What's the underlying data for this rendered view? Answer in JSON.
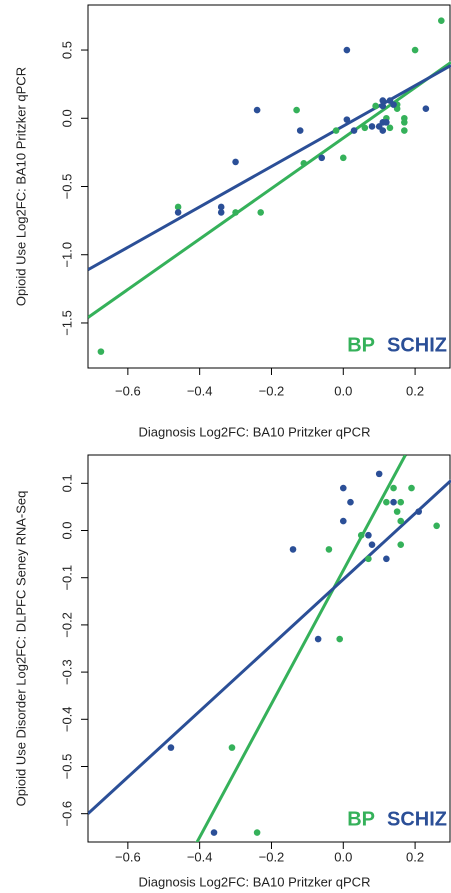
{
  "chart_data": [
    {
      "type": "scatter",
      "xlabel": "Diagnosis Log2FC: BA10 Pritzker qPCR",
      "ylabel": "Opioid Use Log2FC: BA10 Pritzker qPCR",
      "xlim": [
        -0.711,
        0.3
      ],
      "ylim": [
        -1.83,
        0.83
      ],
      "xticks": [
        {
          "value": -0.6,
          "label": "−0.6"
        },
        {
          "value": -0.4,
          "label": "−0.4"
        },
        {
          "value": -0.2,
          "label": "−0.2"
        },
        {
          "value": 0,
          "label": "0.0"
        },
        0.2
      ],
      "yticks": [
        {
          "value": -1.5,
          "label": "−1.5"
        },
        {
          "value": -1,
          "label": "−1.0"
        },
        {
          "value": -0.5,
          "label": "−0.5"
        },
        {
          "value": 0,
          "label": "0.0"
        },
        0.5
      ],
      "series": [
        {
          "name": "BP",
          "color": "#35b15a",
          "x": [
            0.273,
            0.2,
            -0.675,
            -0.46,
            -0.3,
            -0.23,
            -0.13,
            -0.11,
            -0.02,
            0.0,
            0.09,
            0.12,
            0.13,
            0.15,
            0.15,
            0.17,
            0.17,
            0.17,
            0.06
          ],
          "values": [
            0.715,
            0.5,
            -1.71,
            -0.65,
            -0.69,
            -0.69,
            0.06,
            -0.33,
            -0.09,
            -0.29,
            0.09,
            0.0,
            -0.07,
            0.1,
            0.07,
            -0.03,
            -0.09,
            0.0,
            -0.07
          ],
          "fit": {
            "x": [
              -0.711,
              0.3
            ],
            "y": [
              -1.46,
              0.41
            ]
          }
        },
        {
          "name": "SCHIZ",
          "color": "#2b4f97",
          "x": [
            0.01,
            -0.24,
            -0.46,
            -0.34,
            -0.34,
            -0.3,
            -0.12,
            -0.06,
            0.01,
            0.03,
            0.08,
            0.1,
            0.11,
            0.11,
            0.11,
            0.12,
            0.11,
            0.14,
            0.23,
            0.13
          ],
          "values": [
            0.5,
            0.06,
            -0.69,
            -0.65,
            -0.69,
            -0.32,
            -0.09,
            -0.29,
            -0.01,
            -0.09,
            -0.06,
            -0.06,
            0.09,
            0.13,
            -0.03,
            -0.03,
            -0.09,
            0.1,
            0.07,
            0.13
          ],
          "fit": {
            "x": [
              -0.711,
              0.3
            ],
            "y": [
              -1.11,
              0.387
            ]
          }
        }
      ]
    },
    {
      "type": "scatter",
      "xlabel": "Diagnosis Log2FC: BA10 Pritzker qPCR",
      "ylabel": "Opioid Use Disorder Log2FC: DLPFC Seney RNA-Seq",
      "xlim": [
        -0.711,
        0.3
      ],
      "ylim": [
        -0.66,
        0.16
      ],
      "xticks": [
        {
          "value": -0.6,
          "label": "−0.6"
        },
        {
          "value": -0.4,
          "label": "−0.4"
        },
        {
          "value": -0.2,
          "label": "−0.2"
        },
        {
          "value": 0,
          "label": "0.0"
        },
        0.2
      ],
      "yticks": [
        {
          "value": -0.6,
          "label": "−0.6"
        },
        {
          "value": -0.5,
          "label": "−0.5"
        },
        {
          "value": -0.4,
          "label": "−0.4"
        },
        {
          "value": -0.3,
          "label": "−0.3"
        },
        {
          "value": -0.2,
          "label": "−0.2"
        },
        {
          "value": -0.1,
          "label": "−0.1"
        },
        {
          "value": 0,
          "label": "0.0"
        },
        0.1
      ],
      "series": [
        {
          "name": "BP",
          "color": "#35b15a",
          "x": [
            0.14,
            0.19,
            0.12,
            0.16,
            0.15,
            0.16,
            0.26,
            0.05,
            -0.04,
            0.07,
            0.16,
            -0.01,
            -0.31,
            -0.24
          ],
          "values": [
            0.09,
            0.09,
            0.06,
            0.06,
            0.04,
            0.02,
            0.01,
            -0.01,
            -0.04,
            -0.06,
            -0.03,
            -0.23,
            -0.46,
            -0.64
          ],
          "fit": {
            "x": [
              -0.41,
              0.173
            ],
            "y": [
              -0.664,
              0.16
            ]
          }
        },
        {
          "name": "SCHIZ",
          "color": "#2b4f97",
          "x": [
            0.1,
            0.0,
            0.02,
            0.0,
            0.21,
            0.07,
            0.08,
            0.12,
            -0.14,
            -0.07,
            -0.48,
            -0.36,
            0.14
          ],
          "values": [
            0.12,
            0.09,
            0.06,
            0.02,
            0.04,
            -0.01,
            -0.03,
            -0.06,
            -0.04,
            -0.23,
            -0.46,
            -0.64,
            0.06
          ],
          "fit": {
            "x": [
              -0.711,
              0.3
            ],
            "y": [
              -0.6,
              0.106
            ]
          }
        }
      ]
    }
  ]
}
